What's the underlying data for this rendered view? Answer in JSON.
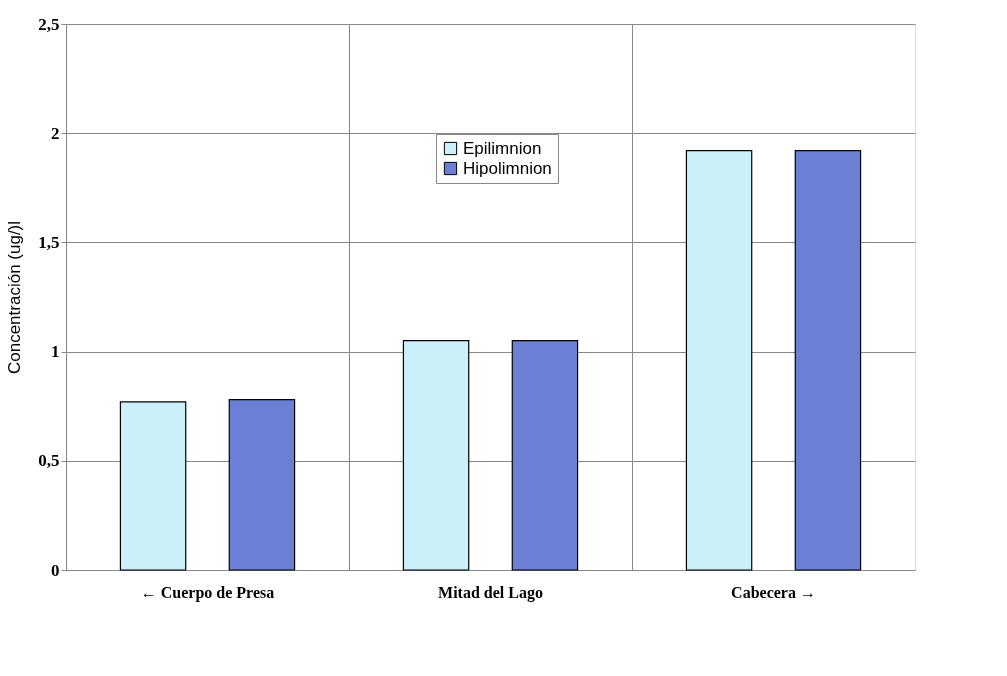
{
  "chart_data": {
    "type": "bar",
    "ylabel": "Concentración (ug/)l",
    "categories": [
      "← Cuerpo de Presa",
      "Mitad del Lago",
      "Cabecera →"
    ],
    "series": [
      {
        "name": "Epilimnion",
        "color": "#ccf0fa",
        "values": [
          0.77,
          1.05,
          1.92
        ]
      },
      {
        "name": "Hipolimnion",
        "color": "#6b7fd4",
        "values": [
          0.78,
          1.05,
          1.92
        ]
      }
    ],
    "ylim": [
      0,
      2.5
    ],
    "yticks": [
      {
        "value": 0,
        "label": "0"
      },
      {
        "value": 0.5,
        "label": "0,5"
      },
      {
        "value": 1,
        "label": "1"
      },
      {
        "value": 1.5,
        "label": "1,5"
      },
      {
        "value": 2,
        "label": "2"
      },
      {
        "value": 2.5,
        "label": "2,5"
      }
    ],
    "grid": true,
    "legend": "top"
  }
}
